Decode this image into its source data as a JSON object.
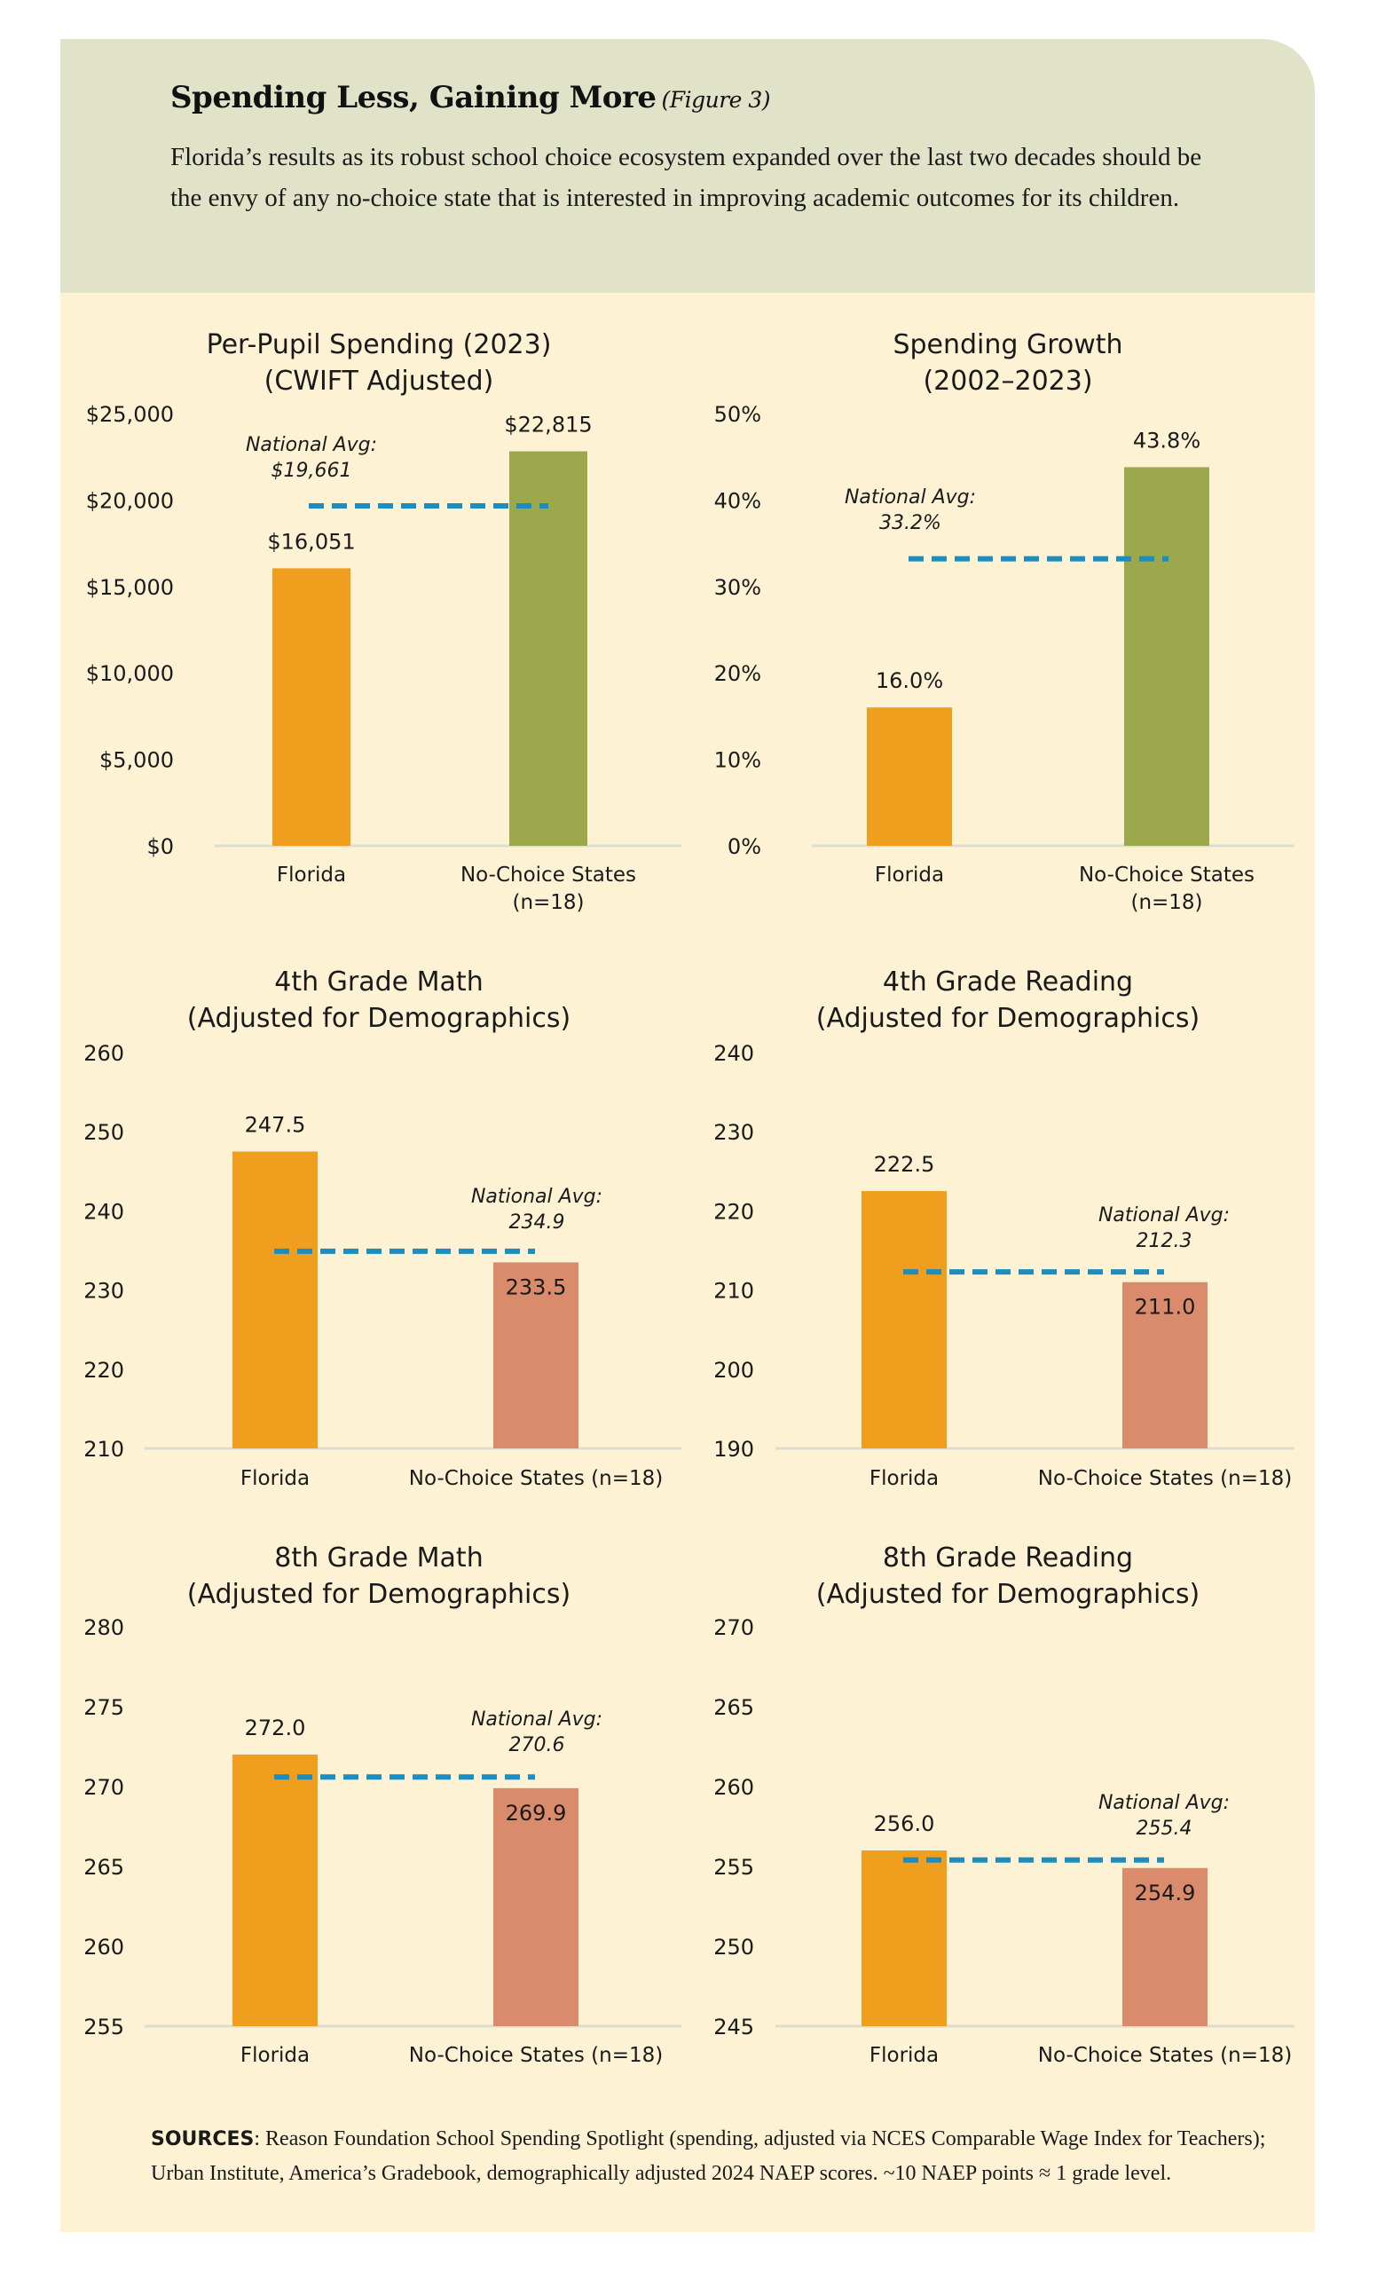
{
  "header": {
    "title": "Spending Less, Gaining More",
    "figure_label": "(Figure 3)",
    "intro": "Florida’s results as its robust school choice ecosystem expanded over the last two decades should be the envy of any no-choice state that is interested in improving academic outcomes for its children."
  },
  "colors": {
    "header_bg": "#E1E3C9",
    "panel_bg": "#FDF3D4",
    "florida": "#F09E1E",
    "no_choice_spending": "#9BA84B",
    "no_choice_scores": "#D98B6C",
    "national_avg": "#1C8DBE"
  },
  "chart_data": [
    {
      "type": "bar",
      "title": [
        "Per-Pupil Spending (2023)",
        "(CWIFT Adjusted)"
      ],
      "categories": [
        [
          "Florida"
        ],
        [
          "No-Choice States",
          "(n=18)"
        ]
      ],
      "values": [
        16051,
        22815
      ],
      "value_labels": [
        "$16,051",
        "$22,815"
      ],
      "ylim": [
        0,
        25000
      ],
      "yticks": [
        0,
        5000,
        10000,
        15000,
        20000,
        25000
      ],
      "ytick_labels": [
        "$0",
        "$5,000",
        "$10,000",
        "$15,000",
        "$20,000",
        "$25,000"
      ],
      "national_avg": {
        "value": 19661,
        "label": [
          "National Avg:",
          "$19,661"
        ]
      }
    },
    {
      "type": "bar",
      "title": [
        "Spending Growth",
        "(2002–2023)"
      ],
      "categories": [
        [
          "Florida"
        ],
        [
          "No-Choice States",
          "(n=18)"
        ]
      ],
      "values": [
        16.0,
        43.8
      ],
      "value_labels": [
        "16.0%",
        "43.8%"
      ],
      "ylim": [
        0,
        50
      ],
      "yticks": [
        0,
        10,
        20,
        30,
        40,
        50
      ],
      "ytick_labels": [
        "0%",
        "10%",
        "20%",
        "30%",
        "40%",
        "50%"
      ],
      "national_avg": {
        "value": 33.2,
        "label": [
          "National Avg:",
          "33.2%"
        ]
      }
    },
    {
      "type": "bar",
      "title": [
        "4th Grade Math",
        "(Adjusted for Demographics)"
      ],
      "categories": [
        [
          "Florida"
        ],
        [
          "No-Choice States (n=18)"
        ]
      ],
      "values": [
        247.5,
        233.5
      ],
      "value_labels": [
        "247.5",
        "233.5"
      ],
      "ylim": [
        210,
        260
      ],
      "yticks": [
        210,
        220,
        230,
        240,
        250,
        260
      ],
      "ytick_labels": [
        "210",
        "220",
        "230",
        "240",
        "250",
        "260"
      ],
      "national_avg": {
        "value": 234.9,
        "label": [
          "National Avg:",
          "234.9"
        ]
      }
    },
    {
      "type": "bar",
      "title": [
        "4th Grade Reading",
        "(Adjusted for Demographics)"
      ],
      "categories": [
        [
          "Florida"
        ],
        [
          "No-Choice States (n=18)"
        ]
      ],
      "values": [
        222.5,
        211.0
      ],
      "value_labels": [
        "222.5",
        "211.0"
      ],
      "ylim": [
        190,
        240
      ],
      "yticks": [
        190,
        200,
        210,
        220,
        230,
        240
      ],
      "ytick_labels": [
        "190",
        "200",
        "210",
        "220",
        "230",
        "240"
      ],
      "national_avg": {
        "value": 212.3,
        "label": [
          "National Avg:",
          "212.3"
        ]
      }
    },
    {
      "type": "bar",
      "title": [
        "8th Grade Math",
        "(Adjusted for Demographics)"
      ],
      "categories": [
        [
          "Florida"
        ],
        [
          "No-Choice States (n=18)"
        ]
      ],
      "values": [
        272.0,
        269.9
      ],
      "value_labels": [
        "272.0",
        "269.9"
      ],
      "ylim": [
        255,
        280
      ],
      "yticks": [
        255,
        260,
        265,
        270,
        275,
        280
      ],
      "ytick_labels": [
        "255",
        "260",
        "265",
        "270",
        "275",
        "280"
      ],
      "national_avg": {
        "value": 270.6,
        "label": [
          "National Avg:",
          "270.6"
        ]
      }
    },
    {
      "type": "bar",
      "title": [
        "8th Grade Reading",
        "(Adjusted for Demographics)"
      ],
      "categories": [
        [
          "Florida"
        ],
        [
          "No-Choice States (n=18)"
        ]
      ],
      "values": [
        256.0,
        254.9
      ],
      "value_labels": [
        "256.0",
        "254.9"
      ],
      "ylim": [
        245,
        270
      ],
      "yticks": [
        245,
        250,
        255,
        260,
        265,
        270
      ],
      "ytick_labels": [
        "245",
        "250",
        "255",
        "260",
        "265",
        "270"
      ],
      "national_avg": {
        "value": 255.4,
        "label": [
          "National Avg:",
          "255.4"
        ]
      }
    }
  ],
  "sources": {
    "label": "SOURCES",
    "text": ": Reason Foundation School Spending Spotlight (spending, adjusted via NCES Comparable Wage Index for Teachers); Urban Institute, America’s Gradebook, demographically adjusted 2024 NAEP scores. ~10 NAEP points ≈ 1 grade level."
  }
}
